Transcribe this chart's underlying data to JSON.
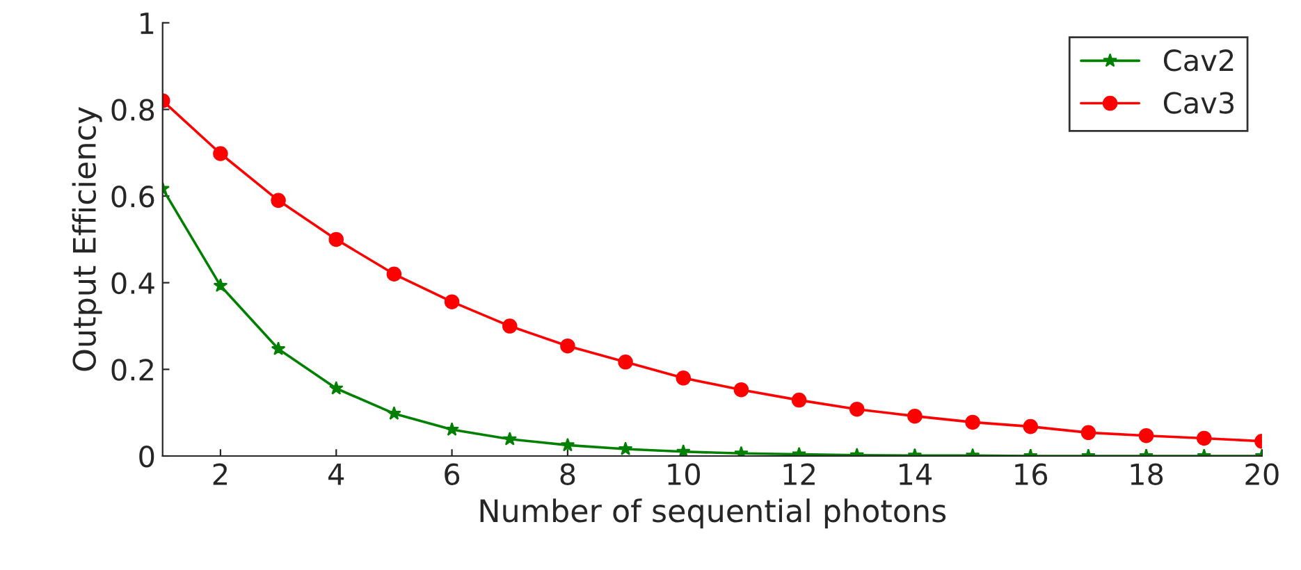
{
  "chart_data": {
    "type": "line",
    "xlabel": "Number of sequential photons",
    "ylabel": "Output Efficiency",
    "x": [
      1,
      2,
      3,
      4,
      5,
      6,
      7,
      8,
      9,
      10,
      11,
      12,
      13,
      14,
      15,
      16,
      17,
      18,
      19,
      20
    ],
    "series": [
      {
        "name": "Cav2",
        "color": "#008000",
        "marker": "star",
        "values": [
          0.617,
          0.393,
          0.247,
          0.156,
          0.098,
          0.061,
          0.039,
          0.025,
          0.016,
          0.01,
          0.006,
          0.004,
          0.002,
          0.001,
          0.001,
          0,
          0,
          0,
          0,
          0
        ]
      },
      {
        "name": "Cav3",
        "color": "#ff0000",
        "marker": "circle",
        "values": [
          0.82,
          0.698,
          0.59,
          0.5,
          0.42,
          0.356,
          0.3,
          0.254,
          0.217,
          0.18,
          0.153,
          0.129,
          0.108,
          0.092,
          0.078,
          0.068,
          0.054,
          0.047,
          0.041,
          0.034
        ]
      }
    ],
    "xlim": [
      1,
      20
    ],
    "xticks": [
      2,
      4,
      6,
      8,
      10,
      12,
      14,
      16,
      18,
      20
    ],
    "ylim": [
      0,
      1
    ],
    "yticks": [
      0,
      0.2,
      0.4,
      0.6,
      0.8,
      1
    ],
    "grid": false,
    "legend": "top right",
    "line_style": "solid"
  }
}
